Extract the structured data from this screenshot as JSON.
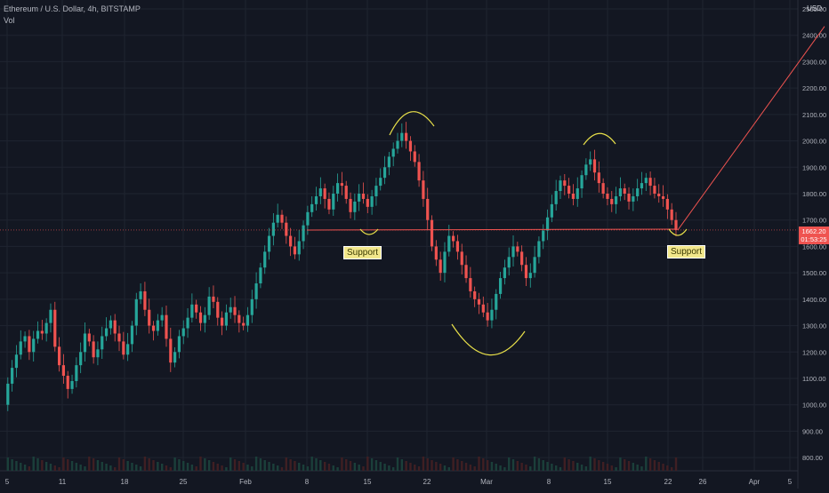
{
  "header": {
    "symbol": "Ethereum / U.S. Dollar, 4h, BITSTAMP",
    "indicator": "Vol",
    "currency": "USD"
  },
  "price_tag": {
    "price": "1662.20",
    "countdown": "01:53:25"
  },
  "annotations": {
    "left_note": "Support",
    "right_note": "Support"
  },
  "chart_data": {
    "type": "line",
    "title": "Ethereum / U.S. Dollar, 4h, BITSTAMP",
    "ylim": [
      750,
      2500
    ],
    "y_ticks": [
      "800.00",
      "900.00",
      "1000.00",
      "1100.00",
      "1200.00",
      "1300.00",
      "1400.00",
      "1500.00",
      "1600.00",
      "1700.00",
      "1800.00",
      "1900.00",
      "2000.00",
      "2100.00",
      "2200.00",
      "2300.00",
      "2400.00",
      "2500.00"
    ],
    "x_ticks": [
      "5",
      "11",
      "18",
      "25",
      "Feb",
      "8",
      "15",
      "22",
      "Mar",
      "8",
      "15",
      "22",
      "26",
      "Apr",
      "5"
    ],
    "series": [
      {
        "values": [
          [
            0,
            1000
          ],
          [
            1,
            1080
          ],
          [
            2,
            1140
          ],
          [
            3,
            1190
          ],
          [
            4,
            1240
          ],
          [
            5,
            1260
          ],
          [
            6,
            1200
          ],
          [
            7,
            1250
          ],
          [
            8,
            1280
          ],
          [
            9,
            1270
          ],
          [
            10,
            1310
          ],
          [
            11,
            1360
          ],
          [
            12,
            1220
          ],
          [
            13,
            1150
          ],
          [
            14,
            1110
          ],
          [
            15,
            1060
          ],
          [
            16,
            1090
          ],
          [
            17,
            1150
          ],
          [
            18,
            1200
          ],
          [
            19,
            1270
          ],
          [
            20,
            1240
          ],
          [
            21,
            1180
          ],
          [
            22,
            1210
          ],
          [
            23,
            1260
          ],
          [
            24,
            1290
          ],
          [
            25,
            1320
          ],
          [
            26,
            1270
          ],
          [
            27,
            1240
          ],
          [
            28,
            1190
          ],
          [
            29,
            1230
          ],
          [
            30,
            1300
          ],
          [
            31,
            1400
          ],
          [
            32,
            1430
          ],
          [
            33,
            1360
          ],
          [
            34,
            1300
          ],
          [
            35,
            1280
          ],
          [
            36,
            1320
          ],
          [
            37,
            1340
          ],
          [
            38,
            1250
          ],
          [
            39,
            1160
          ],
          [
            40,
            1200
          ],
          [
            41,
            1260
          ],
          [
            42,
            1290
          ],
          [
            43,
            1330
          ],
          [
            44,
            1380
          ],
          [
            45,
            1350
          ],
          [
            46,
            1310
          ],
          [
            47,
            1340
          ],
          [
            48,
            1410
          ],
          [
            49,
            1390
          ],
          [
            50,
            1330
          ],
          [
            51,
            1300
          ],
          [
            52,
            1350
          ],
          [
            53,
            1370
          ],
          [
            54,
            1340
          ],
          [
            55,
            1310
          ],
          [
            56,
            1300
          ],
          [
            57,
            1340
          ],
          [
            58,
            1400
          ],
          [
            59,
            1460
          ],
          [
            60,
            1520
          ],
          [
            61,
            1580
          ],
          [
            62,
            1640
          ],
          [
            63,
            1690
          ],
          [
            64,
            1720
          ],
          [
            65,
            1690
          ],
          [
            66,
            1640
          ],
          [
            67,
            1600
          ],
          [
            68,
            1570
          ],
          [
            69,
            1620
          ],
          [
            70,
            1680
          ],
          [
            71,
            1730
          ],
          [
            72,
            1760
          ],
          [
            73,
            1790
          ],
          [
            74,
            1820
          ],
          [
            75,
            1780
          ],
          [
            76,
            1740
          ],
          [
            77,
            1800
          ],
          [
            78,
            1840
          ],
          [
            79,
            1830
          ],
          [
            80,
            1780
          ],
          [
            81,
            1730
          ],
          [
            82,
            1770
          ],
          [
            83,
            1800
          ],
          [
            84,
            1780
          ],
          [
            85,
            1750
          ],
          [
            86,
            1790
          ],
          [
            87,
            1830
          ],
          [
            88,
            1860
          ],
          [
            89,
            1900
          ],
          [
            90,
            1940
          ],
          [
            91,
            1970
          ],
          [
            92,
            2000
          ],
          [
            93,
            2030
          ],
          [
            94,
            2000
          ],
          [
            95,
            1960
          ],
          [
            96,
            1920
          ],
          [
            97,
            1850
          ],
          [
            98,
            1780
          ],
          [
            99,
            1700
          ],
          [
            100,
            1600
          ],
          [
            101,
            1550
          ],
          [
            102,
            1500
          ],
          [
            103,
            1580
          ],
          [
            104,
            1640
          ],
          [
            105,
            1620
          ],
          [
            106,
            1580
          ],
          [
            107,
            1530
          ],
          [
            108,
            1480
          ],
          [
            109,
            1430
          ],
          [
            110,
            1400
          ],
          [
            111,
            1380
          ],
          [
            112,
            1350
          ],
          [
            113,
            1320
          ],
          [
            114,
            1360
          ],
          [
            115,
            1420
          ],
          [
            116,
            1480
          ],
          [
            117,
            1520
          ],
          [
            118,
            1560
          ],
          [
            119,
            1600
          ],
          [
            120,
            1580
          ],
          [
            121,
            1530
          ],
          [
            122,
            1480
          ],
          [
            123,
            1500
          ],
          [
            124,
            1560
          ],
          [
            125,
            1620
          ],
          [
            126,
            1660
          ],
          [
            127,
            1710
          ],
          [
            128,
            1760
          ],
          [
            129,
            1810
          ],
          [
            130,
            1850
          ],
          [
            131,
            1830
          ],
          [
            132,
            1800
          ],
          [
            133,
            1780
          ],
          [
            134,
            1820
          ],
          [
            135,
            1870
          ],
          [
            136,
            1910
          ],
          [
            137,
            1930
          ],
          [
            138,
            1880
          ],
          [
            139,
            1840
          ],
          [
            140,
            1800
          ],
          [
            141,
            1780
          ],
          [
            142,
            1760
          ],
          [
            143,
            1790
          ],
          [
            144,
            1820
          ],
          [
            145,
            1800
          ],
          [
            146,
            1770
          ],
          [
            147,
            1790
          ],
          [
            148,
            1820
          ],
          [
            149,
            1840
          ],
          [
            150,
            1860
          ],
          [
            151,
            1830
          ],
          [
            152,
            1800
          ],
          [
            153,
            1790
          ],
          [
            154,
            1780
          ],
          [
            155,
            1740
          ],
          [
            156,
            1700
          ],
          [
            157,
            1662
          ]
        ]
      }
    ],
    "support_level": 1662,
    "current_price": 1662.2,
    "projection_target": 2400
  }
}
